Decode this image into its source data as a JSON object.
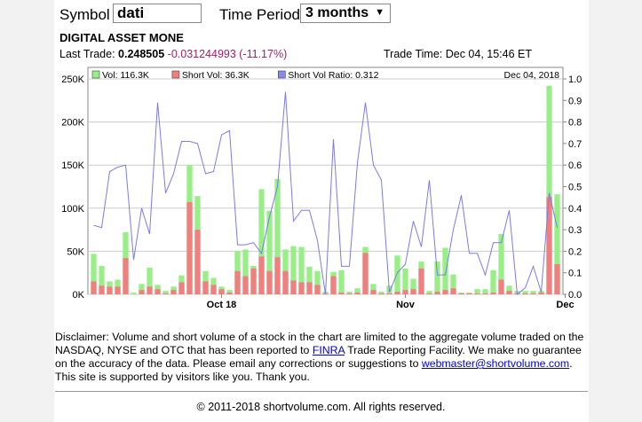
{
  "form": {
    "symbol_label": "Symbol",
    "symbol_value": "dati",
    "period_label": "Time Period",
    "period_value": "3 months"
  },
  "quote": {
    "company": "DIGITAL ASSET MONE",
    "last_trade_label": "Last Trade:",
    "last_price": "0.248505",
    "change": "-0.031244993 (-11.17%)",
    "trade_time": "Trade Time: Dec 04, 15:46 ET"
  },
  "chart_data": {
    "type": "bar",
    "legend": [
      {
        "label": "Vol: 116.3K",
        "color": "#99ee88"
      },
      {
        "label": "Short Vol: 36.3K",
        "color": "#f08080"
      },
      {
        "label": "Short Vol Ratio: 0.312",
        "color": "#8888ee"
      }
    ],
    "legend_date": "Dec 04, 2018",
    "x_tick_labels": [
      {
        "label": "Oct 18",
        "index": 16
      },
      {
        "label": "Nov",
        "index": 39
      },
      {
        "label": "Dec",
        "index": 59
      }
    ],
    "y_left": {
      "ticks": [
        "0K",
        "50K",
        "100K",
        "150K",
        "200K",
        "250K"
      ],
      "min": 0,
      "max": 250000
    },
    "y_right": {
      "ticks": [
        "0.0",
        "0.1",
        "0.2",
        "0.3",
        "0.4",
        "0.5",
        "0.6",
        "0.7",
        "0.8",
        "0.9",
        "1.0"
      ],
      "min": 0,
      "max": 1
    },
    "volume": [
      47000,
      33000,
      15000,
      17000,
      72000,
      2000,
      12000,
      31000,
      11000,
      4000,
      9000,
      22000,
      150000,
      114000,
      27000,
      19000,
      9000,
      5000,
      50000,
      52000,
      33000,
      122000,
      97000,
      134000,
      52000,
      56000,
      55000,
      32000,
      27000,
      3000,
      26000,
      28000,
      3000,
      7000,
      55000,
      12000,
      3000,
      10000,
      45000,
      30000,
      18000,
      38000,
      4000,
      38000,
      54000,
      23000,
      2000,
      2000,
      6000,
      6000,
      28000,
      70000,
      10000,
      4000,
      4000,
      4000,
      4000,
      242000,
      116000
    ],
    "short_volume": [
      15000,
      10000,
      9000,
      9000,
      42000,
      0,
      5000,
      9000,
      6000,
      1000,
      5000,
      14000,
      107000,
      75000,
      15000,
      11000,
      6000,
      2000,
      27000,
      21000,
      30000,
      44000,
      27000,
      43000,
      27000,
      16000,
      14000,
      14000,
      11000,
      1000,
      21000,
      2000,
      1000,
      2000,
      48000,
      5000,
      1000,
      1000,
      3000,
      5000,
      6000,
      30000,
      1000,
      3000,
      5000,
      7000,
      1000,
      1000,
      1000,
      1000,
      2000,
      17000,
      4000,
      1000,
      1000,
      1000,
      2000,
      113000,
      35000
    ],
    "ratio": [
      0.32,
      0.31,
      0.57,
      0.59,
      0.6,
      0.16,
      0.4,
      0.28,
      0.89,
      0.47,
      0.56,
      0.71,
      0.71,
      0.7,
      0.56,
      0.57,
      0.74,
      0.76,
      0.23,
      0.23,
      0.24,
      0.19,
      0.36,
      0.5,
      0.94,
      0.34,
      0.39,
      0.39,
      0.25,
      0.0,
      0.72,
      0.13,
      0.13,
      0.61,
      0.89,
      0.6,
      0.53,
      0.01,
      0.1,
      0.14,
      0.34,
      0.22,
      0.53,
      0.09,
      0.09,
      0.3,
      0.46,
      0.19,
      0.19,
      0.09,
      0.24,
      0.24,
      0.39,
      0.0,
      0.03,
      0.13,
      0.01,
      0.47,
      0.31
    ]
  },
  "disclaimer": {
    "part1": "Disclaimer: Volume and short volume of a stock in the chart are limited to the aggregate volume traded on the NASDAQ, NYSE and OTC that has been reported to ",
    "finra_link": "FINRA",
    "part2": " Trade Reporting Facility. We make no guarantee on the accuracy of the data. Please email any corrections or suggestions to ",
    "email_link": "webmaster@shortvolume.com",
    "part3": ". This site is supported by visitors like you. Thank you."
  },
  "footer": "© 2011-2018 shortvolume.com. All rights reserved."
}
